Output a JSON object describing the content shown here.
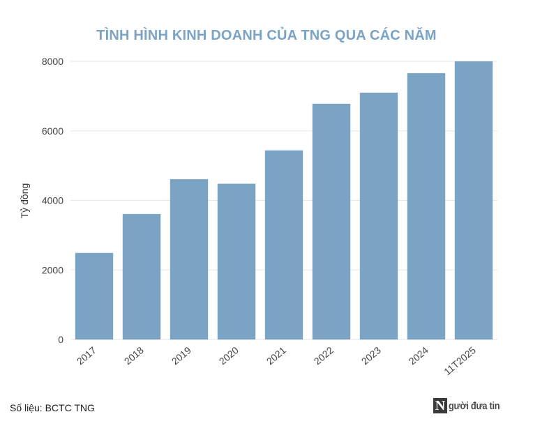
{
  "chart_data": {
    "type": "bar",
    "title": "TÌNH HÌNH KINH DOANH CỦA TNG QUA CÁC NĂM",
    "xlabel": "",
    "ylabel": "Tỷ đồng",
    "categories": [
      "2017",
      "2018",
      "2019",
      "2020",
      "2021",
      "2022",
      "2023",
      "2024",
      "11T2025"
    ],
    "values": [
      2490,
      3610,
      4610,
      4480,
      5440,
      6780,
      7100,
      7660,
      8000
    ],
    "ylim": [
      0,
      8000
    ],
    "yticks": [
      "0",
      "2000",
      "4000",
      "6000",
      "8000"
    ],
    "grid": true,
    "colors": {
      "bar": "#7aa3c4",
      "title": "#7aa3c4",
      "grid": "#e6e6e6",
      "axis_text": "#444444"
    }
  },
  "footer": {
    "source": "Số liệu: BCTC TNG",
    "logo_letter": "N",
    "logo_text": "gười đưa tin"
  }
}
